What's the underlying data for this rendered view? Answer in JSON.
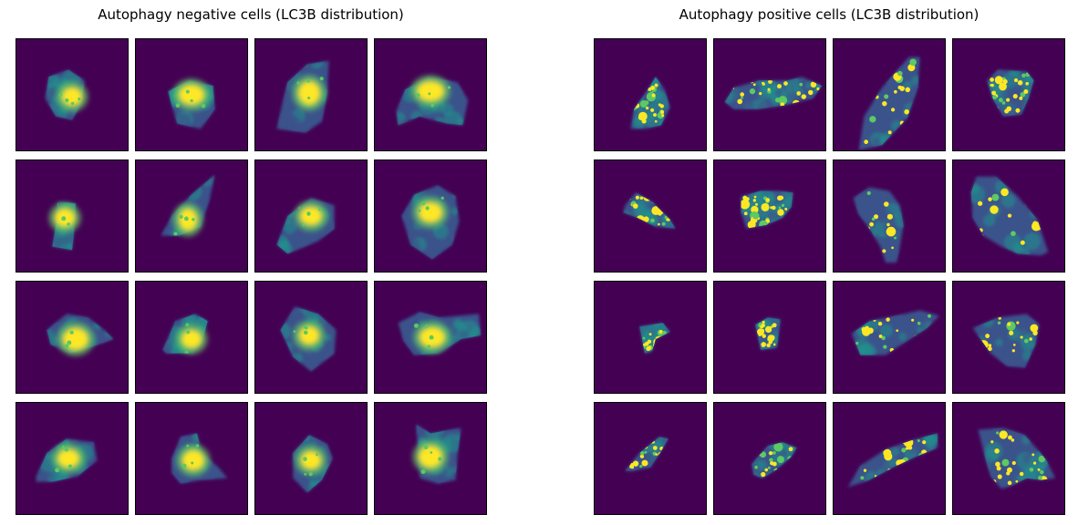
{
  "figure": {
    "panels": [
      {
        "id": "negative",
        "title": "Autophagy negative cells (LC3B distribution)",
        "rows": 4,
        "cols": 4,
        "pattern": "diffuse cytoplasm with bright central nucleus"
      },
      {
        "id": "positive",
        "title": "Autophagy positive cells (LC3B distribution)",
        "rows": 4,
        "cols": 4,
        "pattern": "cytoplasm with many bright punctate spots"
      }
    ],
    "colormap": {
      "name": "viridis",
      "background": "#440154",
      "cytoplasm_dim": "#3b528b",
      "cytoplasm_mid": "#21918c",
      "cytoplasm_bright": "#5ec962",
      "signal_peak": "#fde725"
    }
  }
}
